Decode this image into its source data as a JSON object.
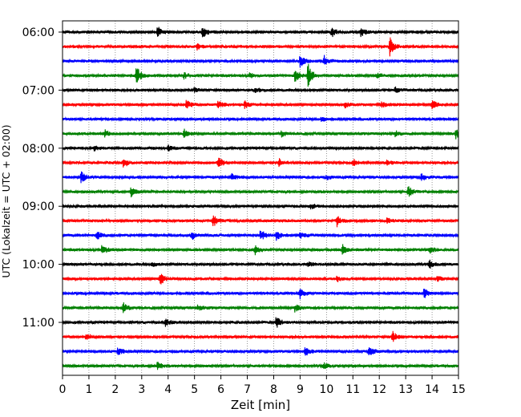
{
  "chart_data": {
    "type": "line",
    "title": "",
    "xlabel": "Zeit  [min]",
    "ylabel": "UTC (Lokalzeit = UTC + 02:00)",
    "xlim": [
      0,
      15
    ],
    "x_ticks": [
      "0",
      "1",
      "2",
      "3",
      "4",
      "5",
      "6",
      "7",
      "8",
      "9",
      "10",
      "11",
      "12",
      "13",
      "14",
      "15"
    ],
    "y_tick_labels": [
      "06:00",
      "07:00",
      "08:00",
      "09:00",
      "10:00",
      "11:00"
    ],
    "traces_per_hour": 4,
    "trace_minutes": 15,
    "start_time": "06:00",
    "grid": "vertical dotted",
    "colors": [
      "#000000",
      "#ff0000",
      "#0000ff",
      "#008000"
    ],
    "traces": [
      {
        "start": "06:00",
        "events": [
          [
            3.6,
            0.6
          ],
          [
            5.3,
            0.7
          ],
          [
            10.2,
            0.6
          ],
          [
            11.3,
            0.6
          ]
        ]
      },
      {
        "start": "06:15",
        "events": [
          [
            5.1,
            0.3
          ],
          [
            12.4,
            1.0
          ]
        ]
      },
      {
        "start": "06:30",
        "events": [
          [
            9.0,
            0.7
          ],
          [
            9.9,
            0.6
          ]
        ]
      },
      {
        "start": "06:45",
        "events": [
          [
            2.8,
            1.0
          ],
          [
            4.6,
            0.3
          ],
          [
            7.1,
            0.3
          ],
          [
            8.8,
            0.8
          ],
          [
            9.3,
            1.4
          ],
          [
            11.9,
            0.3
          ]
        ]
      },
      {
        "start": "07:00",
        "events": [
          [
            5.0,
            0.3
          ],
          [
            7.3,
            0.3
          ],
          [
            12.6,
            0.3
          ]
        ]
      },
      {
        "start": "07:15",
        "events": [
          [
            4.7,
            0.6
          ],
          [
            5.9,
            0.5
          ],
          [
            6.9,
            0.4
          ],
          [
            10.7,
            0.3
          ],
          [
            12.1,
            0.3
          ],
          [
            14.0,
            0.5
          ]
        ]
      },
      {
        "start": "07:30",
        "events": [
          [
            9.8,
            0.2
          ]
        ]
      },
      {
        "start": "07:45",
        "events": [
          [
            1.6,
            0.4
          ],
          [
            4.6,
            0.6
          ],
          [
            8.3,
            0.3
          ],
          [
            12.6,
            0.3
          ],
          [
            14.9,
            0.5
          ]
        ]
      },
      {
        "start": "08:00",
        "events": [
          [
            1.2,
            0.3
          ],
          [
            4.0,
            0.3
          ]
        ]
      },
      {
        "start": "08:15",
        "events": [
          [
            2.3,
            0.6
          ],
          [
            5.9,
            0.7
          ],
          [
            8.2,
            0.4
          ],
          [
            11.0,
            0.4
          ],
          [
            12.3,
            0.3
          ]
        ]
      },
      {
        "start": "08:30",
        "events": [
          [
            0.7,
            0.6
          ],
          [
            6.4,
            0.4
          ],
          [
            10.0,
            0.2
          ],
          [
            13.6,
            0.4
          ]
        ]
      },
      {
        "start": "08:45",
        "events": [
          [
            2.6,
            0.5
          ],
          [
            13.1,
            0.6
          ]
        ]
      },
      {
        "start": "09:00",
        "events": [
          [
            9.4,
            0.3
          ]
        ]
      },
      {
        "start": "09:15",
        "events": [
          [
            5.7,
            0.7
          ],
          [
            10.4,
            0.6
          ],
          [
            12.3,
            0.3
          ]
        ]
      },
      {
        "start": "09:30",
        "events": [
          [
            1.3,
            0.5
          ],
          [
            4.9,
            0.5
          ],
          [
            7.5,
            0.7
          ],
          [
            8.1,
            0.6
          ],
          [
            9.0,
            0.4
          ]
        ]
      },
      {
        "start": "09:45",
        "events": [
          [
            1.5,
            0.7
          ],
          [
            7.3,
            0.5
          ],
          [
            10.6,
            0.6
          ],
          [
            13.9,
            0.4
          ]
        ]
      },
      {
        "start": "10:00",
        "events": [
          [
            3.4,
            0.3
          ],
          [
            9.3,
            0.3
          ],
          [
            13.9,
            0.5
          ]
        ]
      },
      {
        "start": "10:15",
        "events": [
          [
            3.7,
            0.7
          ],
          [
            10.4,
            0.3
          ],
          [
            14.2,
            0.3
          ]
        ]
      },
      {
        "start": "10:30",
        "events": [
          [
            9.0,
            0.6
          ],
          [
            13.7,
            0.6
          ]
        ]
      },
      {
        "start": "10:45",
        "events": [
          [
            2.3,
            0.6
          ],
          [
            5.1,
            0.3
          ],
          [
            8.8,
            0.4
          ]
        ]
      },
      {
        "start": "11:00",
        "events": [
          [
            3.9,
            0.4
          ],
          [
            8.1,
            0.7
          ]
        ]
      },
      {
        "start": "11:15",
        "events": [
          [
            0.9,
            0.5
          ],
          [
            12.5,
            0.6
          ]
        ]
      },
      {
        "start": "11:30",
        "events": [
          [
            2.1,
            0.5
          ],
          [
            9.2,
            0.6
          ],
          [
            11.6,
            0.6
          ]
        ]
      },
      {
        "start": "11:45",
        "events": [
          [
            3.6,
            0.4
          ],
          [
            9.9,
            0.3
          ]
        ]
      }
    ]
  }
}
